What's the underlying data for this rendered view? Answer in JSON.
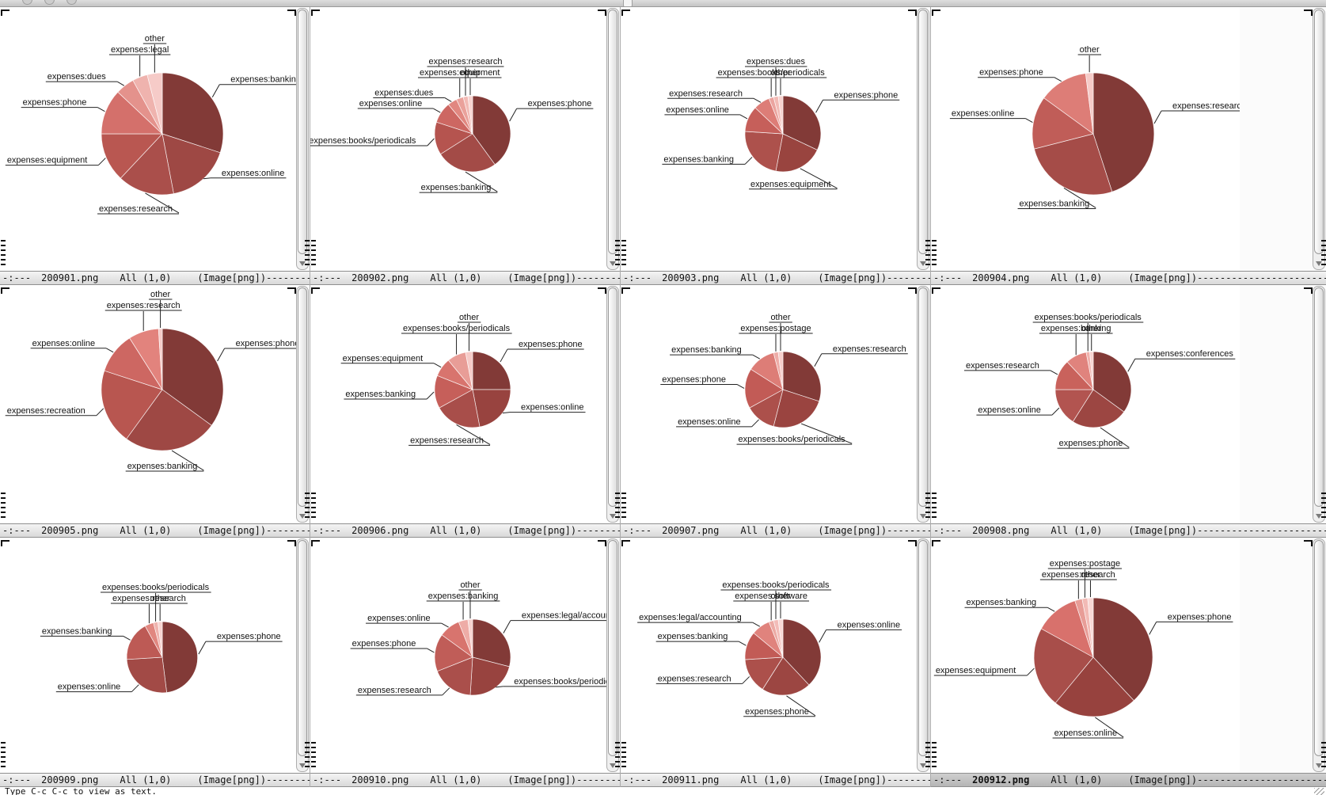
{
  "titlebar": {
    "traffic_lights": [
      "close",
      "minimize",
      "zoom"
    ],
    "icon": "document-icon"
  },
  "modeline": {
    "prefix": "-:---",
    "position": "All (1,0)",
    "mode": "(Image[png])",
    "dashes": "------------------------------------------------------------------------"
  },
  "minibuffer": {
    "message": "Type C-c C-c to view as text."
  },
  "panes": [
    {
      "filename": "200901.png",
      "active": false
    },
    {
      "filename": "200902.png",
      "active": false
    },
    {
      "filename": "200903.png",
      "active": false
    },
    {
      "filename": "200904.png",
      "active": false
    },
    {
      "filename": "200905.png",
      "active": false
    },
    {
      "filename": "200906.png",
      "active": false
    },
    {
      "filename": "200907.png",
      "active": false
    },
    {
      "filename": "200908.png",
      "active": false
    },
    {
      "filename": "200909.png",
      "active": false
    },
    {
      "filename": "200910.png",
      "active": false
    },
    {
      "filename": "200911.png",
      "active": false
    },
    {
      "filename": "200912.png",
      "active": true
    }
  ],
  "chart_data": [
    {
      "filename": "200901.png",
      "type": "pie",
      "radius_px": 77,
      "slices": [
        {
          "label": "expenses:banking",
          "value": 0.3,
          "color": "#823a37"
        },
        {
          "label": "expenses:online",
          "value": 0.17,
          "color": "#9e4844"
        },
        {
          "label": "expenses:research",
          "value": 0.15,
          "color": "#aa4f4b"
        },
        {
          "label": "expenses:equipment",
          "value": 0.13,
          "color": "#b95751"
        },
        {
          "label": "expenses:phone",
          "value": 0.12,
          "color": "#d4706b"
        },
        {
          "label": "expenses:dues",
          "value": 0.05,
          "color": "#e4928c"
        },
        {
          "label": "expenses:legal",
          "value": 0.04,
          "color": "#efb3ae"
        },
        {
          "label": "other",
          "value": 0.04,
          "color": "#f6cbc8"
        }
      ]
    },
    {
      "filename": "200902.png",
      "type": "pie",
      "radius_px": 48,
      "slices": [
        {
          "label": "expenses:phone",
          "value": 0.4,
          "color": "#823a37"
        },
        {
          "label": "expenses:banking",
          "value": 0.26,
          "color": "#a34b47"
        },
        {
          "label": "expenses:books/periodicals",
          "value": 0.14,
          "color": "#b5544f"
        },
        {
          "label": "expenses:online",
          "value": 0.09,
          "color": "#cd6762"
        },
        {
          "label": "expenses:dues",
          "value": 0.04,
          "color": "#e18780"
        },
        {
          "label": "expenses:equipment",
          "value": 0.03,
          "color": "#eaa19b"
        },
        {
          "label": "expenses:research",
          "value": 0.02,
          "color": "#f2bab5"
        },
        {
          "label": "other",
          "value": 0.02,
          "color": "#f8d3d0"
        }
      ]
    },
    {
      "filename": "200903.png",
      "type": "pie",
      "radius_px": 48,
      "slices": [
        {
          "label": "expenses:phone",
          "value": 0.32,
          "color": "#823a37"
        },
        {
          "label": "expenses:equipment",
          "value": 0.21,
          "color": "#99443f"
        },
        {
          "label": "expenses:banking",
          "value": 0.23,
          "color": "#ad514c"
        },
        {
          "label": "expenses:online",
          "value": 0.11,
          "color": "#c65f5a"
        },
        {
          "label": "expenses:research",
          "value": 0.07,
          "color": "#dd7d77"
        },
        {
          "label": "expenses:books/periodicals",
          "value": 0.02,
          "color": "#eba49f"
        },
        {
          "label": "expenses:dues",
          "value": 0.02,
          "color": "#f2bab5"
        },
        {
          "label": "other",
          "value": 0.02,
          "color": "#f8d3d0"
        }
      ]
    },
    {
      "filename": "200904.png",
      "type": "pie",
      "radius_px": 77,
      "slices": [
        {
          "label": "expenses:research",
          "value": 0.45,
          "color": "#823a37"
        },
        {
          "label": "expenses:banking",
          "value": 0.26,
          "color": "#a54c48"
        },
        {
          "label": "expenses:online",
          "value": 0.14,
          "color": "#c05d58"
        },
        {
          "label": "expenses:phone",
          "value": 0.13,
          "color": "#dd7d77"
        },
        {
          "label": "other",
          "value": 0.02,
          "color": "#f6cbc8"
        }
      ]
    },
    {
      "filename": "200905.png",
      "type": "pie",
      "radius_px": 77,
      "slices": [
        {
          "label": "expenses:phone",
          "value": 0.35,
          "color": "#823a37"
        },
        {
          "label": "expenses:banking",
          "value": 0.25,
          "color": "#9e4844"
        },
        {
          "label": "expenses:recreation",
          "value": 0.2,
          "color": "#b85650"
        },
        {
          "label": "expenses:online",
          "value": 0.11,
          "color": "#cd6762"
        },
        {
          "label": "expenses:research",
          "value": 0.08,
          "color": "#e2837d"
        },
        {
          "label": "other",
          "value": 0.01,
          "color": "#f6cbc8"
        }
      ]
    },
    {
      "filename": "200906.png",
      "type": "pie",
      "radius_px": 48,
      "slices": [
        {
          "label": "expenses:phone",
          "value": 0.25,
          "color": "#823a37"
        },
        {
          "label": "expenses:online",
          "value": 0.22,
          "color": "#98433f"
        },
        {
          "label": "expenses:research",
          "value": 0.2,
          "color": "#a84e4a"
        },
        {
          "label": "expenses:banking",
          "value": 0.14,
          "color": "#c65f5a"
        },
        {
          "label": "expenses:equipment",
          "value": 0.08,
          "color": "#d8746e"
        },
        {
          "label": "expenses:books/periodicals",
          "value": 0.08,
          "color": "#e89d97"
        },
        {
          "label": "other",
          "value": 0.03,
          "color": "#f6cbc8"
        }
      ]
    },
    {
      "filename": "200907.png",
      "type": "pie",
      "radius_px": 48,
      "slices": [
        {
          "label": "expenses:research",
          "value": 0.3,
          "color": "#823a37"
        },
        {
          "label": "expenses:books/periodicals",
          "value": 0.24,
          "color": "#9a4440"
        },
        {
          "label": "expenses:online",
          "value": 0.13,
          "color": "#ac504b"
        },
        {
          "label": "expenses:phone",
          "value": 0.17,
          "color": "#c25b56"
        },
        {
          "label": "expenses:banking",
          "value": 0.12,
          "color": "#dd7d77"
        },
        {
          "label": "expenses:postage",
          "value": 0.02,
          "color": "#eeaca7"
        },
        {
          "label": "other",
          "value": 0.02,
          "color": "#f7cecb"
        }
      ]
    },
    {
      "filename": "200908.png",
      "type": "pie",
      "radius_px": 48,
      "slices": [
        {
          "label": "expenses:conferences",
          "value": 0.35,
          "color": "#823a37"
        },
        {
          "label": "expenses:phone",
          "value": 0.24,
          "color": "#9c4642"
        },
        {
          "label": "expenses:online",
          "value": 0.16,
          "color": "#b25450"
        },
        {
          "label": "expenses:research",
          "value": 0.13,
          "color": "#c9625c"
        },
        {
          "label": "expenses:banking",
          "value": 0.09,
          "color": "#e0837d"
        },
        {
          "label": "expenses:books/periodicals",
          "value": 0.015,
          "color": "#f0b1ac"
        },
        {
          "label": "other",
          "value": 0.015,
          "color": "#f8d3d0"
        }
      ]
    },
    {
      "filename": "200909.png",
      "type": "pie",
      "radius_px": 45,
      "slices": [
        {
          "label": "expenses:phone",
          "value": 0.48,
          "color": "#823a37"
        },
        {
          "label": "expenses:online",
          "value": 0.26,
          "color": "#a24a46"
        },
        {
          "label": "expenses:banking",
          "value": 0.18,
          "color": "#bd5a55"
        },
        {
          "label": "expenses:research",
          "value": 0.04,
          "color": "#e18780"
        },
        {
          "label": "expenses:books/periodicals",
          "value": 0.02,
          "color": "#efb3ae"
        },
        {
          "label": "other",
          "value": 0.02,
          "color": "#f8d3d0"
        }
      ]
    },
    {
      "filename": "200910.png",
      "type": "pie",
      "radius_px": 48,
      "slices": [
        {
          "label": "expenses:legal/accounting",
          "value": 0.29,
          "color": "#823a37"
        },
        {
          "label": "expenses:books/periodicals",
          "value": 0.22,
          "color": "#98433f"
        },
        {
          "label": "expenses:research",
          "value": 0.18,
          "color": "#aa4f4b"
        },
        {
          "label": "expenses:phone",
          "value": 0.16,
          "color": "#c05d58"
        },
        {
          "label": "expenses:online",
          "value": 0.09,
          "color": "#d8746e"
        },
        {
          "label": "expenses:banking",
          "value": 0.04,
          "color": "#eeaca7"
        },
        {
          "label": "other",
          "value": 0.02,
          "color": "#f8d3d0"
        }
      ]
    },
    {
      "filename": "200911.png",
      "type": "pie",
      "radius_px": 48,
      "slices": [
        {
          "label": "expenses:online",
          "value": 0.38,
          "color": "#823a37"
        },
        {
          "label": "expenses:phone",
          "value": 0.21,
          "color": "#9c4642"
        },
        {
          "label": "expenses:research",
          "value": 0.15,
          "color": "#ac504b"
        },
        {
          "label": "expenses:banking",
          "value": 0.12,
          "color": "#c25b56"
        },
        {
          "label": "expenses:legal/accounting",
          "value": 0.08,
          "color": "#e0837d"
        },
        {
          "label": "expenses:software",
          "value": 0.02,
          "color": "#ecaaa4"
        },
        {
          "label": "expenses:books/periodicals",
          "value": 0.02,
          "color": "#f3bcb8"
        },
        {
          "label": "other",
          "value": 0.02,
          "color": "#f9d8d5"
        }
      ]
    },
    {
      "filename": "200912.png",
      "type": "pie",
      "radius_px": 75,
      "slices": [
        {
          "label": "expenses:phone",
          "value": 0.38,
          "color": "#823a37"
        },
        {
          "label": "expenses:online",
          "value": 0.23,
          "color": "#97423e"
        },
        {
          "label": "expenses:equipment",
          "value": 0.22,
          "color": "#a84e4a"
        },
        {
          "label": "expenses:banking",
          "value": 0.12,
          "color": "#d8716c"
        },
        {
          "label": "expenses:research",
          "value": 0.02,
          "color": "#e89d97"
        },
        {
          "label": "expenses:postage",
          "value": 0.015,
          "color": "#f2bab5"
        },
        {
          "label": "other",
          "value": 0.015,
          "color": "#f9d8d5"
        }
      ]
    }
  ]
}
